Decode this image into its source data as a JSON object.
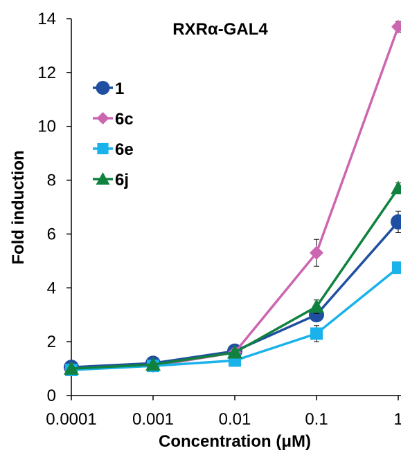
{
  "chart_data": {
    "type": "line",
    "title": "RXRα-GAL4",
    "xlabel": "Concentration (μM)",
    "ylabel": "Fold induction",
    "x_scale": "log",
    "categories": [
      "0.0001",
      "0.001",
      "0.01",
      "0.1",
      "1"
    ],
    "x": [
      0.0001,
      0.001,
      0.01,
      0.1,
      1
    ],
    "ylim": [
      0,
      14
    ],
    "yticks": [
      0,
      2,
      4,
      6,
      8,
      10,
      12,
      14
    ],
    "grid": false,
    "legend_position": "top-left",
    "series": [
      {
        "name": "1",
        "color": "#1f4fa0",
        "marker": "circle",
        "values": [
          1.05,
          1.2,
          1.65,
          3.0,
          6.45
        ],
        "errors": [
          0.05,
          0.05,
          0.1,
          0.25,
          0.4
        ]
      },
      {
        "name": "6c",
        "color": "#cc66b0",
        "marker": "diamond",
        "values": [
          1.0,
          1.1,
          1.6,
          5.3,
          13.7
        ],
        "errors": [
          0.05,
          0.05,
          0.1,
          0.5,
          0.2
        ]
      },
      {
        "name": "6e",
        "color": "#19b2ea",
        "marker": "square",
        "values": [
          0.95,
          1.1,
          1.3,
          2.3,
          4.75
        ],
        "errors": [
          0.05,
          0.05,
          0.1,
          0.3,
          0.2
        ]
      },
      {
        "name": "6j",
        "color": "#11813f",
        "marker": "triangle",
        "values": [
          1.0,
          1.15,
          1.6,
          3.3,
          7.7
        ],
        "errors": [
          0.05,
          0.05,
          0.1,
          0.25,
          0.2
        ]
      }
    ]
  }
}
